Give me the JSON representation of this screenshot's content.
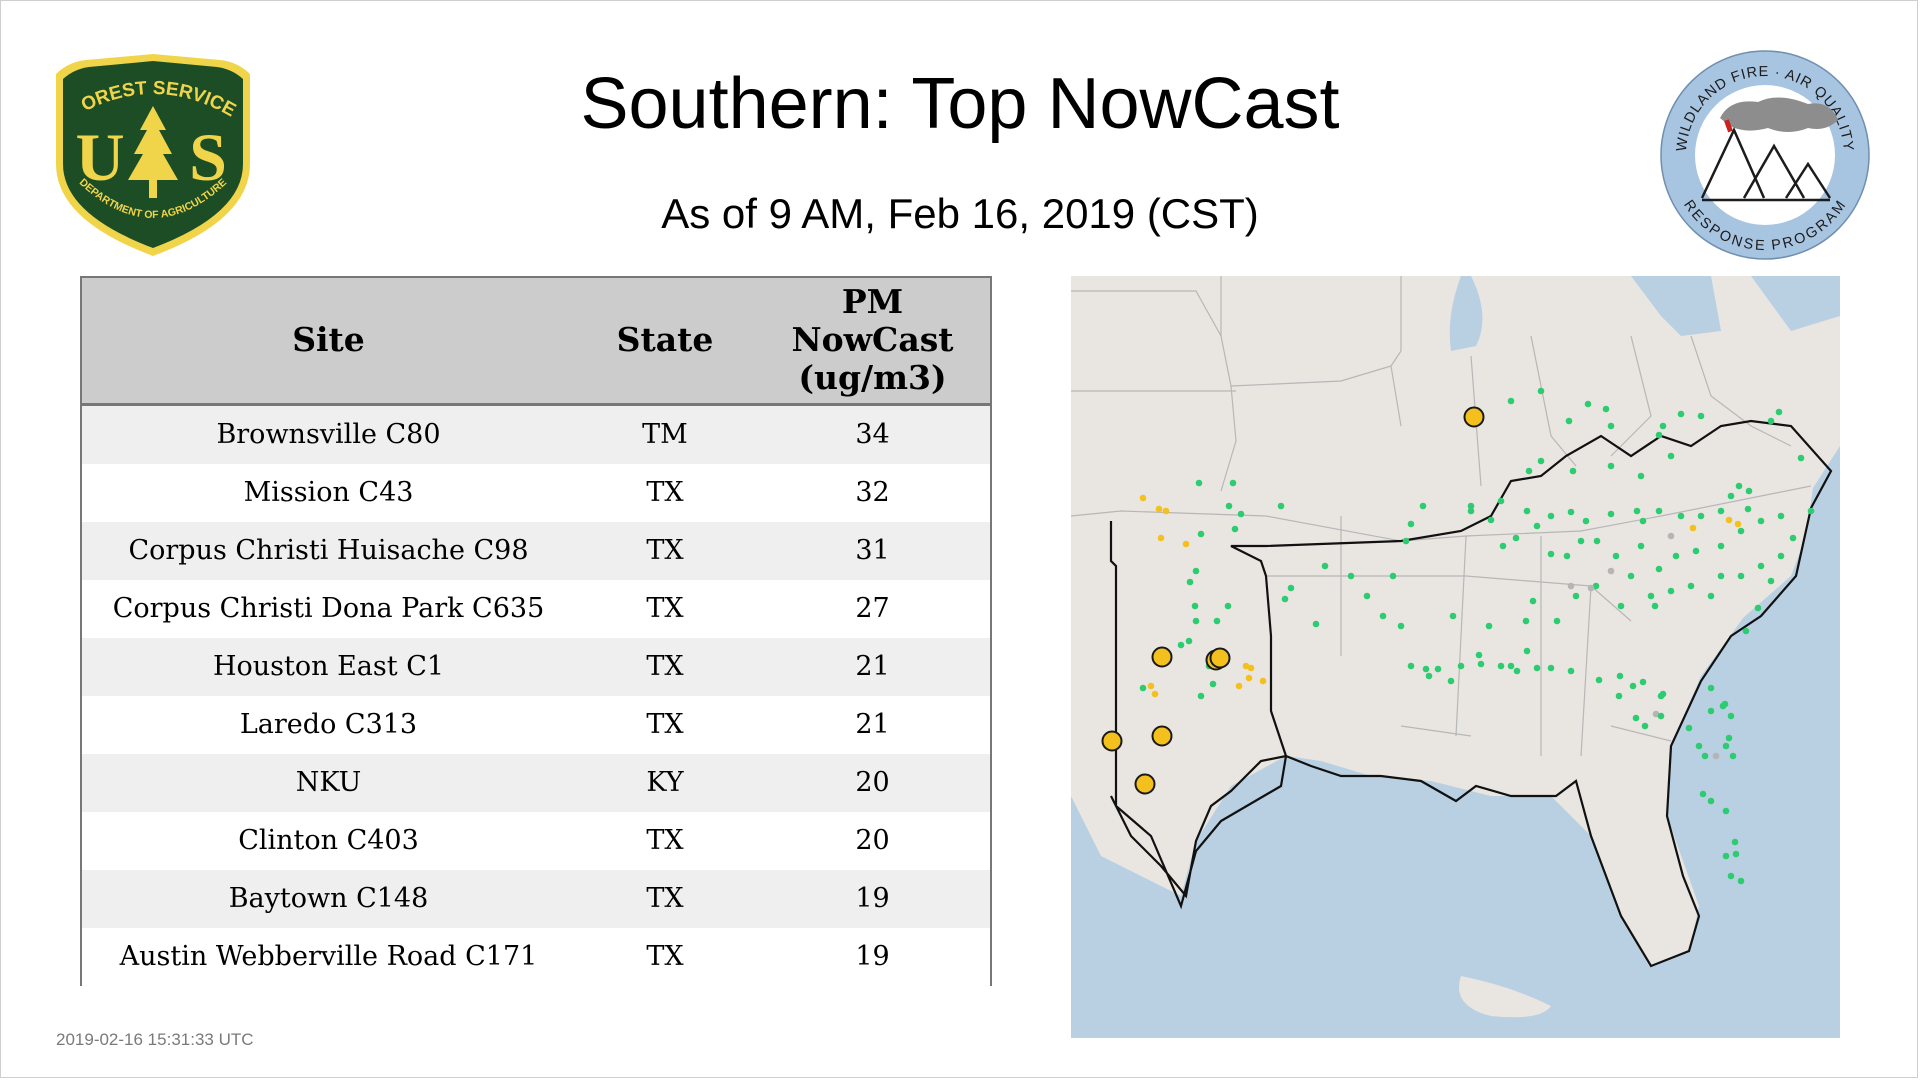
{
  "header": {
    "title": "Southern: Top NowCast",
    "subtitle": "As of  9 AM, Feb 16, 2019 (CST)"
  },
  "logos": {
    "forest_service": {
      "top_text": "FOREST SERVICE",
      "bottom_text": "DEPARTMENT OF AGRICULTURE",
      "letters": [
        "U",
        "S"
      ],
      "colors": {
        "shield": "#1d4d25",
        "gold": "#f0d54b"
      }
    },
    "wildland_fire": {
      "top_text": "WILDLAND FIRE · AIR QUALITY",
      "bottom_text": "RESPONSE PROGRAM",
      "colors": {
        "ring": "#a7c4e1",
        "smoke": "#8d8d8d",
        "flame": "#cc1f1f"
      }
    }
  },
  "table": {
    "columns": [
      "Site",
      "State",
      "PM NowCast (ug/m3)"
    ],
    "rows": [
      {
        "site": "Brownsville C80",
        "state": "TM",
        "value": "34"
      },
      {
        "site": "Mission C43",
        "state": "TX",
        "value": "32"
      },
      {
        "site": "Corpus Christi Huisache C98",
        "state": "TX",
        "value": "31"
      },
      {
        "site": "Corpus Christi Dona Park C635",
        "state": "TX",
        "value": "27"
      },
      {
        "site": "Houston East C1",
        "state": "TX",
        "value": "21"
      },
      {
        "site": "Laredo C313",
        "state": "TX",
        "value": "21"
      },
      {
        "site": "NKU",
        "state": "KY",
        "value": "20"
      },
      {
        "site": "Clinton C403",
        "state": "TX",
        "value": "20"
      },
      {
        "site": "Baytown C148",
        "state": "TX",
        "value": "19"
      },
      {
        "site": "Austin Webberville Road C171",
        "state": "TX",
        "value": "19"
      }
    ]
  },
  "map": {
    "colors": {
      "land": "#e9e5e1",
      "water": "#b9d0e3",
      "borders": "#b7b7b7",
      "region_outline": "#111111",
      "good": "#2ecc71",
      "moderate": "#f4c01e",
      "nodata": "#b5b5b5",
      "highlight_edge": "#1a1a1a"
    }
  },
  "footer": {
    "timestamp": "2019-02-16 15:31:33 UTC"
  }
}
